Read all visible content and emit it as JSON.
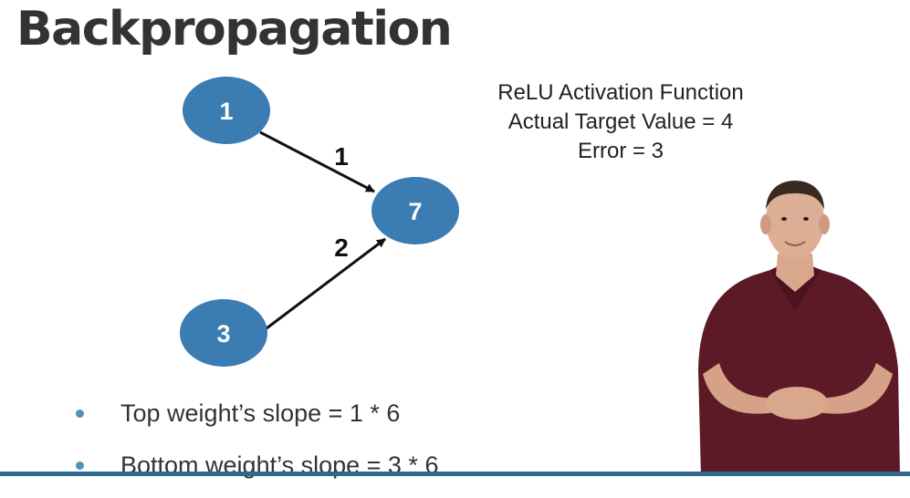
{
  "slide": {
    "title": "Backpropagation",
    "notes": [
      "ReLU Activation Function",
      "Actual Target Value = 4",
      "Error = 3"
    ],
    "bullets": [
      "Top weight’s slope = 1 * 6",
      "Bottom weight’s slope = 3 * 6"
    ]
  },
  "diagram": {
    "node_color": "#3b7cb3",
    "nodes": [
      {
        "id": "input-top",
        "label": "1"
      },
      {
        "id": "input-bottom",
        "label": "3"
      },
      {
        "id": "output",
        "label": "7"
      }
    ],
    "edges": [
      {
        "from": "input-top",
        "to": "output",
        "weight": "1"
      },
      {
        "from": "input-bottom",
        "to": "output",
        "weight": "2"
      }
    ]
  }
}
